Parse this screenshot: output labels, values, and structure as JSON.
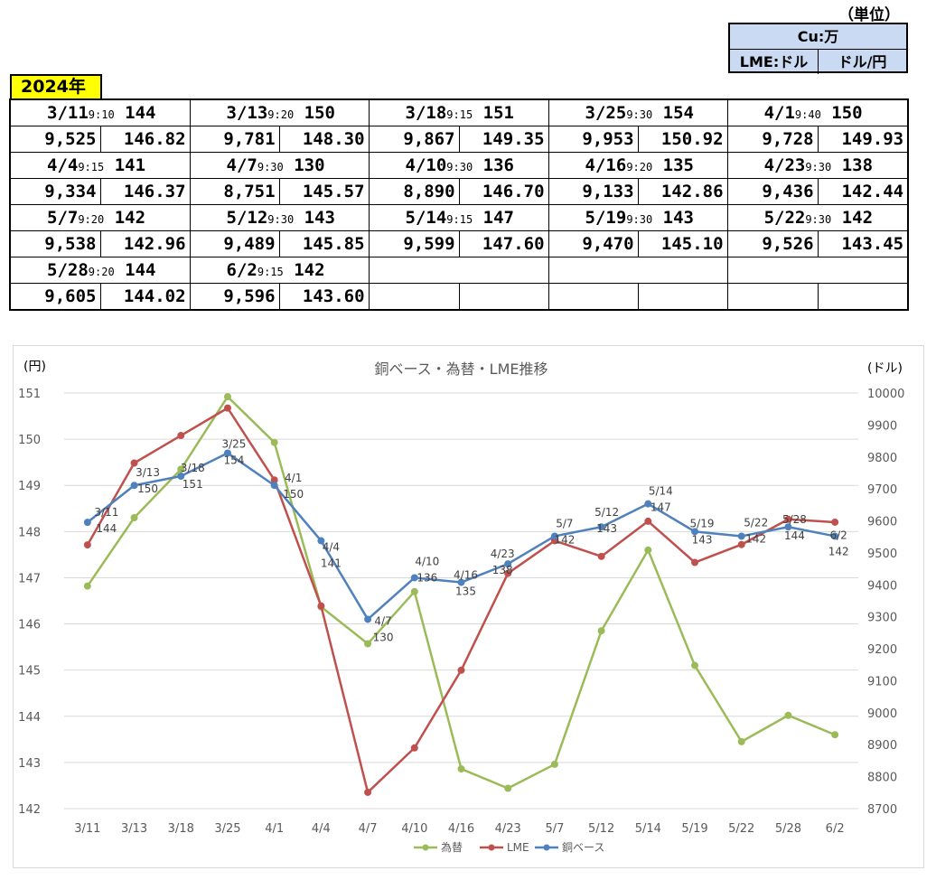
{
  "header": {
    "unit_note": "（単位）",
    "unit_cu": "Cu:万",
    "unit_lme": "LME:ドル",
    "unit_fx": "ドル/円",
    "year": "2024年"
  },
  "table": {
    "cells": [
      {
        "date": "3/11",
        "time": "9:10",
        "cu": "144",
        "lme": "9,525",
        "fx": "146.82"
      },
      {
        "date": "3/13",
        "time": "9:20",
        "cu": "150",
        "lme": "9,781",
        "fx": "148.30"
      },
      {
        "date": "3/18",
        "time": "9:15",
        "cu": "151",
        "lme": "9,867",
        "fx": "149.35"
      },
      {
        "date": "3/25",
        "time": "9:30",
        "cu": "154",
        "lme": "9,953",
        "fx": "150.92"
      },
      {
        "date": "4/1",
        "time": "9:40",
        "cu": "150",
        "lme": "9,728",
        "fx": "149.93"
      },
      {
        "date": "4/4",
        "time": "9:15",
        "cu": "141",
        "lme": "9,334",
        "fx": "146.37"
      },
      {
        "date": "4/7",
        "time": "9:30",
        "cu": "130",
        "lme": "8,751",
        "fx": "145.57"
      },
      {
        "date": "4/10",
        "time": "9:30",
        "cu": "136",
        "lme": "8,890",
        "fx": "146.70"
      },
      {
        "date": "4/16",
        "time": "9:20",
        "cu": "135",
        "lme": "9,133",
        "fx": "142.86"
      },
      {
        "date": "4/23",
        "time": "9:30",
        "cu": "138",
        "lme": "9,436",
        "fx": "142.44"
      },
      {
        "date": "5/7",
        "time": "9:20",
        "cu": "142",
        "lme": "9,538",
        "fx": "142.96"
      },
      {
        "date": "5/12",
        "time": "9:30",
        "cu": "143",
        "lme": "9,489",
        "fx": "145.85"
      },
      {
        "date": "5/14",
        "time": "9:15",
        "cu": "147",
        "lme": "9,599",
        "fx": "147.60"
      },
      {
        "date": "5/19",
        "time": "9:30",
        "cu": "143",
        "lme": "9,470",
        "fx": "145.10"
      },
      {
        "date": "5/22",
        "time": "9:30",
        "cu": "142",
        "lme": "9,526",
        "fx": "143.45"
      },
      {
        "date": "5/28",
        "time": "9:20",
        "cu": "144",
        "lme": "9,605",
        "fx": "144.02"
      },
      {
        "date": "6/2",
        "time": "9:15",
        "cu": "142",
        "lme": "9,596",
        "fx": "143.60"
      }
    ]
  },
  "chart_data": {
    "type": "line",
    "title": "銅ベース・為替・LME推移",
    "ylabel_left": "(円)",
    "ylabel_right": "(ドル)",
    "categories": [
      "3/11",
      "3/13",
      "3/18",
      "3/25",
      "4/1",
      "4/4",
      "4/7",
      "4/10",
      "4/16",
      "4/23",
      "5/7",
      "5/12",
      "5/14",
      "5/19",
      "5/22",
      "5/28",
      "6/2"
    ],
    "ylim_left": [
      142,
      151
    ],
    "ylim_right": [
      8700,
      10000
    ],
    "yticks_left": [
      142,
      143,
      144,
      145,
      146,
      147,
      148,
      149,
      150,
      151
    ],
    "yticks_right": [
      8700,
      8800,
      8900,
      9000,
      9100,
      9200,
      9300,
      9400,
      9500,
      9600,
      9700,
      9800,
      9900,
      10000
    ],
    "grid": true,
    "legend_position": "bottom",
    "series": [
      {
        "name": "為替",
        "axis": "left",
        "color": "#9bbb59",
        "values": [
          146.82,
          148.3,
          149.35,
          150.92,
          149.93,
          146.37,
          145.57,
          146.7,
          142.86,
          142.44,
          142.96,
          145.85,
          147.6,
          145.1,
          143.45,
          144.02,
          143.6
        ]
      },
      {
        "name": "LME",
        "axis": "right",
        "color": "#c0504d",
        "values": [
          9525,
          9781,
          9867,
          9953,
          9728,
          9334,
          8751,
          8890,
          9133,
          9436,
          9538,
          9489,
          9599,
          9470,
          9526,
          9605,
          9596
        ]
      },
      {
        "name": "銅ベース",
        "axis": "left",
        "color": "#4f81bd",
        "values": [
          148.2,
          149.0,
          149.2,
          149.7,
          149.0,
          147.8,
          146.1,
          147.0,
          146.9,
          147.3,
          147.9,
          148.1,
          148.6,
          148.0,
          147.9,
          148.1,
          147.9
        ],
        "labels": [
          [
            "3/11",
            "144"
          ],
          [
            "3/13",
            "150"
          ],
          [
            "3/18",
            "151"
          ],
          [
            "3/25",
            "154"
          ],
          [
            "4/1",
            "150"
          ],
          [
            "4/4",
            "141"
          ],
          [
            "4/7",
            "130"
          ],
          [
            "4/10",
            "136"
          ],
          [
            "4/16",
            "135"
          ],
          [
            "4/23",
            "138"
          ],
          [
            "5/7",
            "142"
          ],
          [
            "5/12",
            "143"
          ],
          [
            "5/14",
            "147"
          ],
          [
            "5/19",
            "143"
          ],
          [
            "5/22",
            "142"
          ],
          [
            "5/28",
            "144"
          ],
          [
            "6/2",
            "142"
          ]
        ]
      }
    ]
  }
}
